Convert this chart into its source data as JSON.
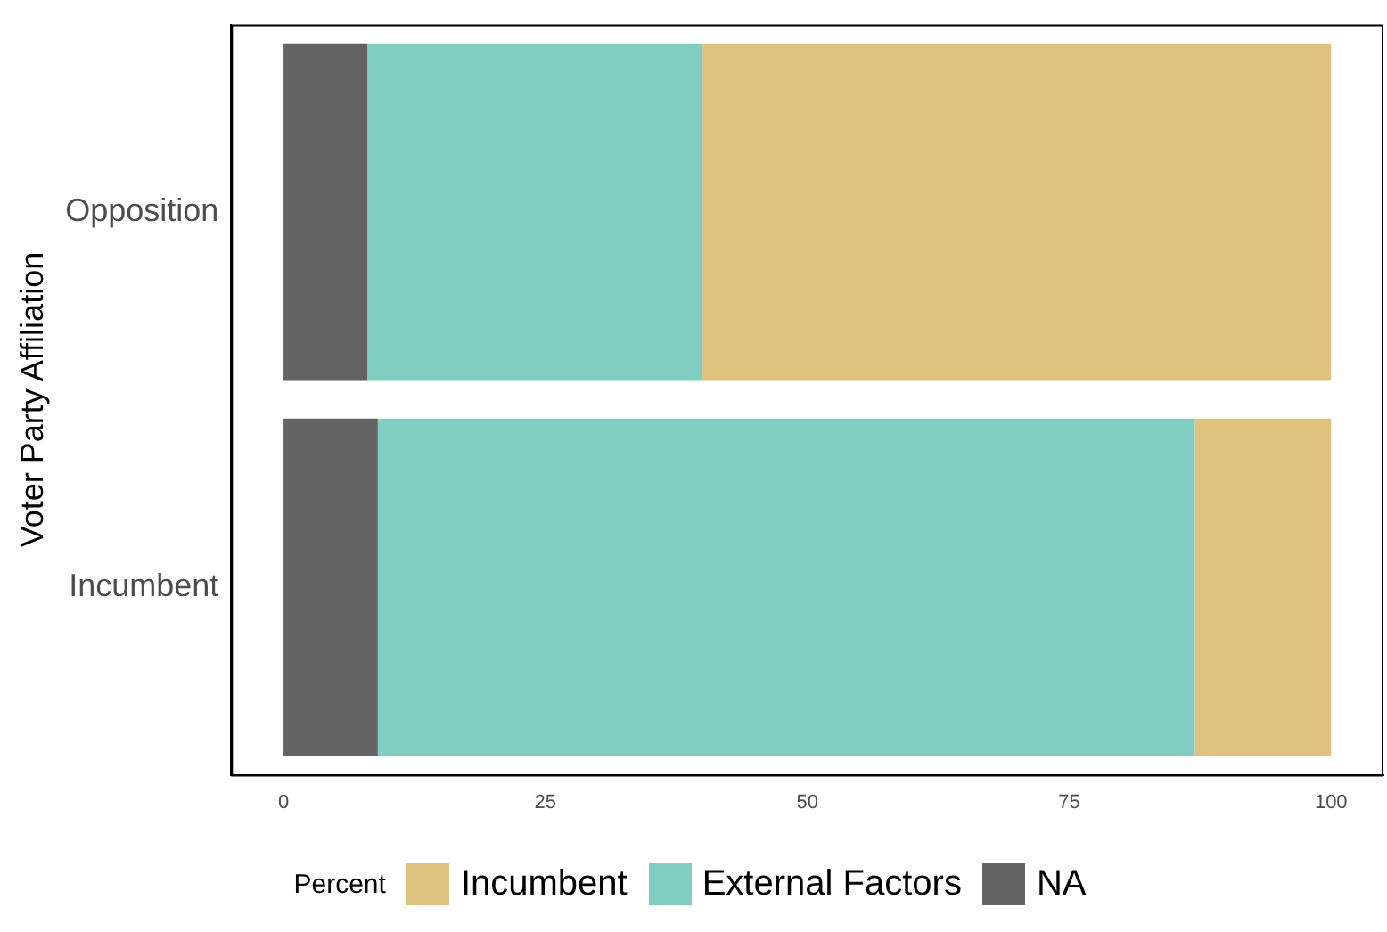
{
  "chart_data": {
    "type": "bar",
    "orientation": "horizontal",
    "stacked": true,
    "ylabel": "Voter Party Affiliation",
    "legend_title": "Percent",
    "categories": [
      "Opposition",
      "Incumbent"
    ],
    "series": [
      {
        "name": "NA",
        "color": "#636363",
        "values": [
          8,
          9
        ]
      },
      {
        "name": "External Factors",
        "color": "#80cdc1",
        "values": [
          32,
          78
        ]
      },
      {
        "name": "Incumbent",
        "color": "#dfc27d",
        "values": [
          60,
          13
        ]
      }
    ],
    "xlim": [
      -5,
      105
    ],
    "xticks": [
      0,
      25,
      50,
      75,
      100
    ],
    "grid": false,
    "legend": "bottom"
  }
}
